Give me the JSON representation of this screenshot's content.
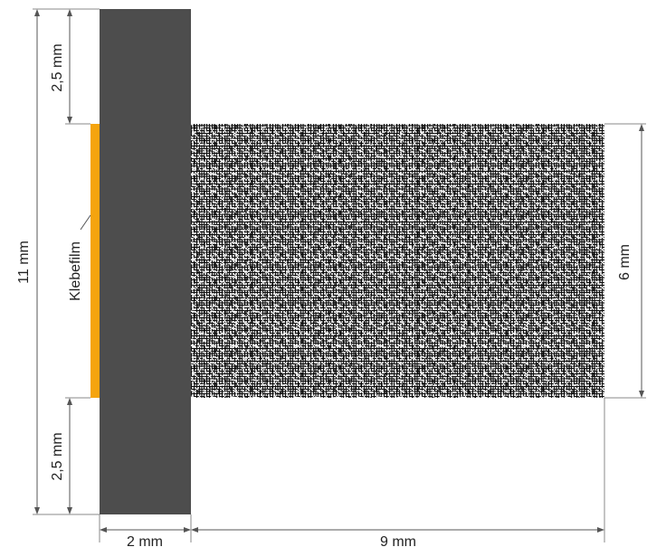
{
  "dimensions": {
    "total_height": "11 mm",
    "top_gap": "2,5 mm",
    "bottom_gap": "2,5 mm",
    "strip_width": "2 mm",
    "mesh_length": "9 mm",
    "mesh_height": "6 mm"
  },
  "labels": {
    "adhesive_film": "Klebefilm"
  },
  "colors": {
    "strip": "#4d4d4d",
    "adhesive": "#f5a40e",
    "mesh": "#111111",
    "dimension_lines": "#555555"
  }
}
